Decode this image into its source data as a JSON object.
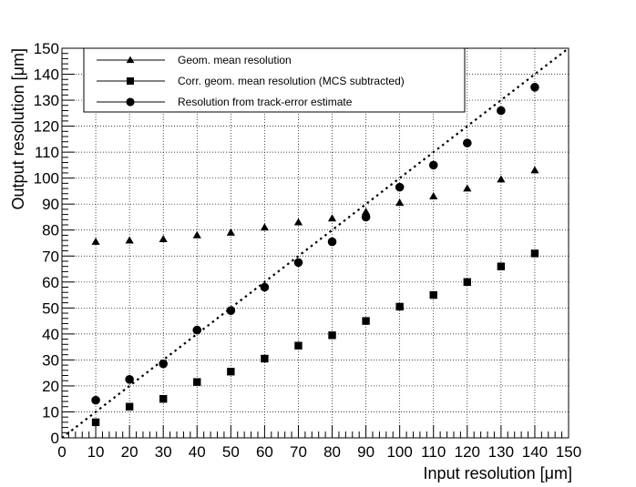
{
  "chart_data": {
    "type": "scatter",
    "title": "",
    "xlabel": "Input resolution [μm]",
    "ylabel": "Output resolution [μm]",
    "xlim": [
      0,
      150
    ],
    "ylim": [
      0,
      150
    ],
    "xticks": [
      0,
      10,
      20,
      30,
      40,
      50,
      60,
      70,
      80,
      90,
      100,
      110,
      120,
      130,
      140,
      150
    ],
    "yticks": [
      0,
      10,
      20,
      30,
      40,
      50,
      60,
      70,
      80,
      90,
      100,
      110,
      120,
      130,
      140,
      150
    ],
    "grid": true,
    "legend_position": "top-left",
    "series": [
      {
        "name": "Geom. mean resolution",
        "marker": "triangle",
        "color": "#000000",
        "x": [
          10,
          20,
          30,
          40,
          50,
          60,
          70,
          80,
          90,
          100,
          110,
          120,
          130,
          140
        ],
        "y": [
          75.5,
          76,
          76.5,
          78,
          79,
          81,
          83,
          84.5,
          87,
          90.5,
          93,
          96,
          99.5,
          103
        ]
      },
      {
        "name": "Corr. geom. mean resolution (MCS subtracted)",
        "marker": "square",
        "color": "#000000",
        "x": [
          10,
          20,
          30,
          40,
          50,
          60,
          70,
          80,
          90,
          100,
          110,
          120,
          130,
          140
        ],
        "y": [
          6,
          12,
          15,
          21.5,
          25.5,
          30.5,
          35.5,
          39.5,
          45,
          50.5,
          55,
          60,
          66,
          71
        ]
      },
      {
        "name": "Resolution from track-error estimate",
        "marker": "circle",
        "color": "#000000",
        "x": [
          10,
          20,
          30,
          40,
          50,
          60,
          70,
          80,
          90,
          100,
          110,
          120,
          130,
          140
        ],
        "y": [
          14.5,
          22.5,
          28.5,
          41.5,
          49,
          58,
          67.5,
          75.5,
          85,
          96.5,
          105,
          113.5,
          126,
          135
        ]
      }
    ],
    "reference_line": {
      "style": "dotted",
      "x": [
        0,
        150
      ],
      "y": [
        0,
        150
      ]
    }
  }
}
